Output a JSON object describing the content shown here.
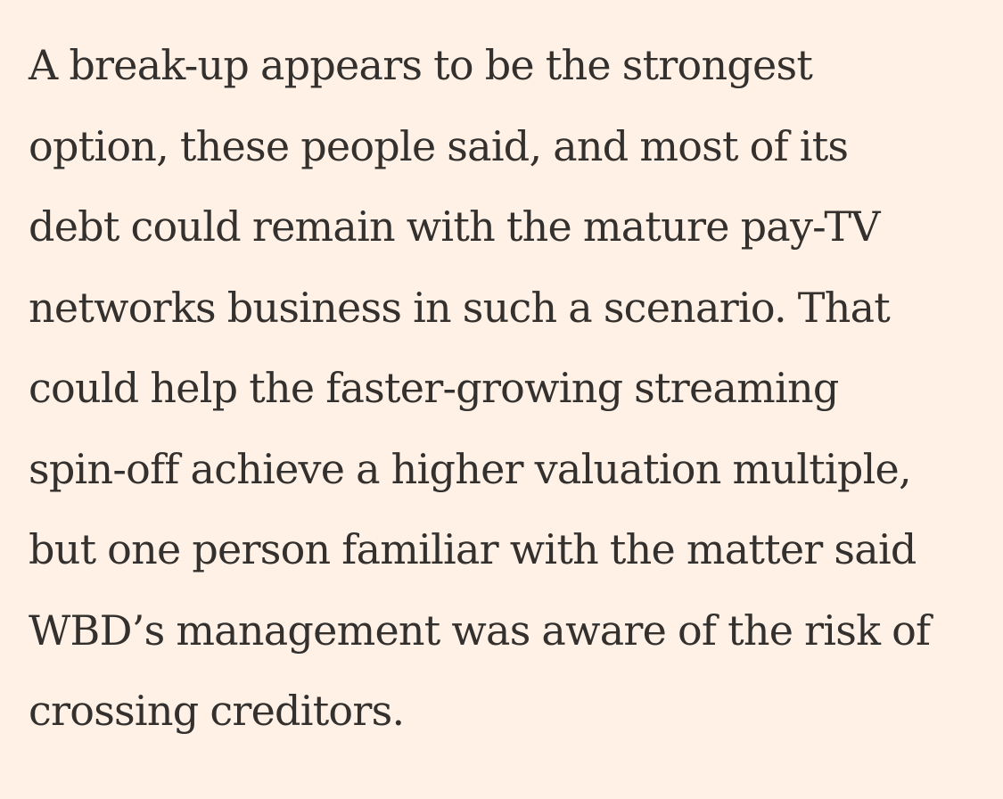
{
  "article": {
    "paragraph_lines": [
      "A break-up appears to be the strongest",
      "option, these people said, and most of its",
      "debt could remain with the mature pay-TV",
      "networks business in such a scenario. That",
      "could help the faster-growing streaming",
      "spin-off achieve a higher valuation multiple,",
      "but one person familiar with the matter said",
      "WBD’s management was aware of the risk of",
      "crossing creditors."
    ]
  },
  "colors": {
    "background": "#fff1e5",
    "text": "#33302e"
  }
}
